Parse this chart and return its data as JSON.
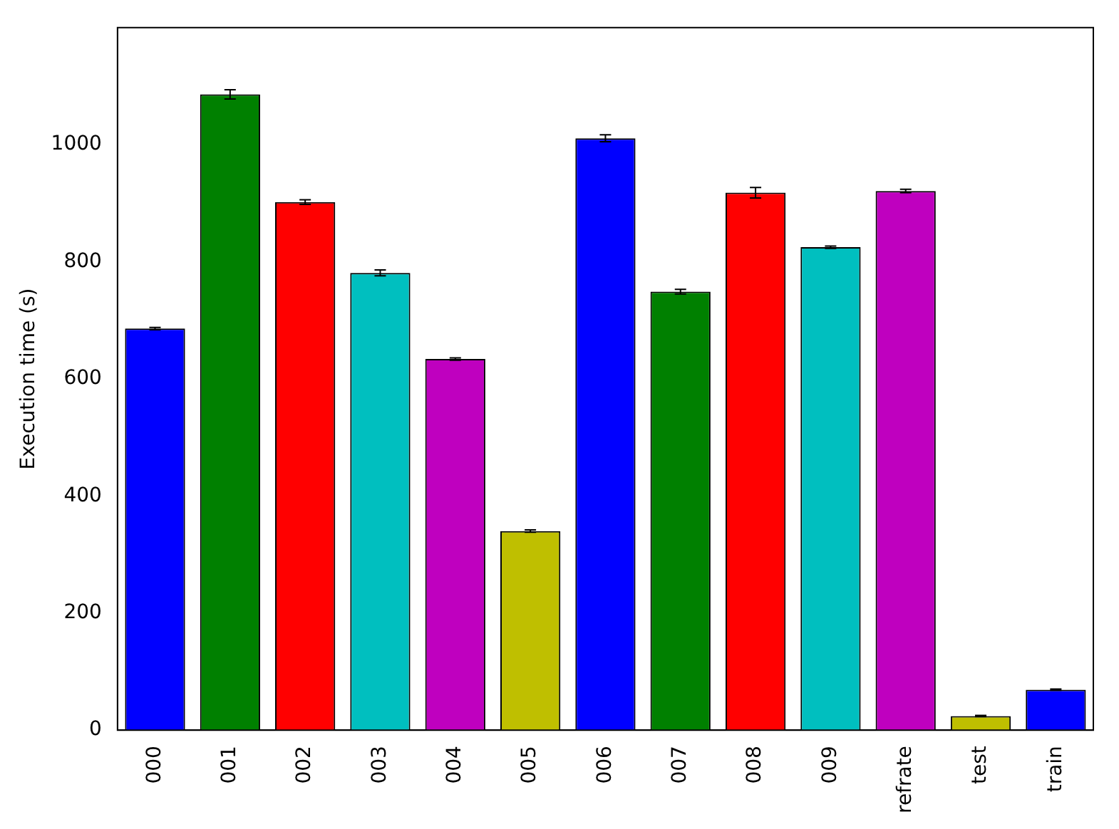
{
  "chart_data": {
    "type": "bar",
    "ylabel": "Execution time (s)",
    "categories": [
      "000",
      "001",
      "002",
      "003",
      "004",
      "005",
      "006",
      "007",
      "008",
      "009",
      "refrate",
      "test",
      "train"
    ],
    "values": [
      686,
      1086,
      902,
      781,
      634,
      340,
      1011,
      749,
      918,
      825,
      921,
      24,
      69
    ],
    "errors": [
      2,
      8,
      4,
      5,
      2,
      2,
      6,
      4,
      9,
      2,
      3,
      1,
      1
    ],
    "colors": [
      "#0000ff",
      "#008000",
      "#ff0000",
      "#00bfbf",
      "#bf00bf",
      "#bfbf00",
      "#0000ff",
      "#008000",
      "#ff0000",
      "#00bfbf",
      "#bf00bf",
      "#bfbf00",
      "#0000ff"
    ],
    "ylim": [
      0,
      1200
    ],
    "yticks": [
      0,
      200,
      400,
      600,
      800,
      1000
    ],
    "grid": false,
    "legend": false
  }
}
